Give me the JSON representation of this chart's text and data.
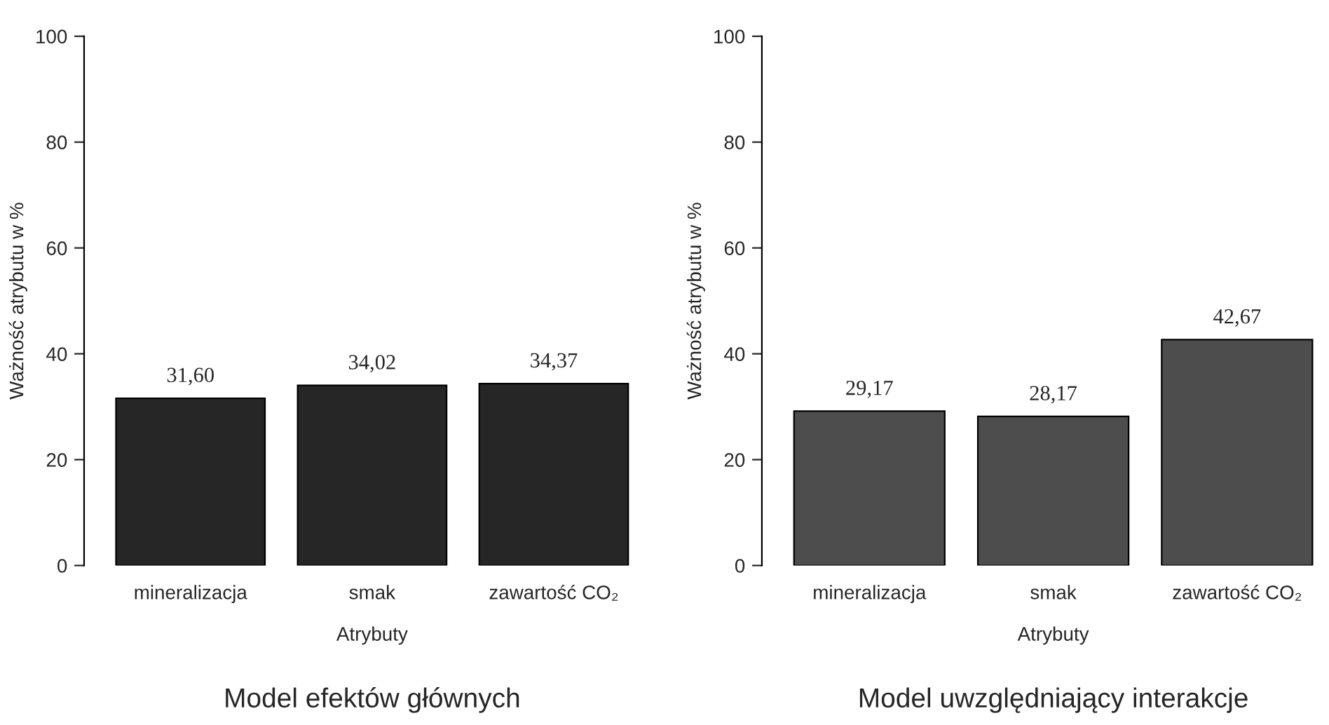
{
  "chart_data": [
    {
      "type": "bar",
      "title": "Model efektów głównych",
      "xlabel": "Atrybuty",
      "ylabel": "Ważność atrybutu w %",
      "categories": [
        "mineralizacja",
        "smak",
        "zawartość CO₂"
      ],
      "values": [
        31.6,
        34.02,
        34.37
      ],
      "value_labels": [
        "31,60",
        "34,02",
        "34,37"
      ],
      "color": "#262626",
      "ylim": [
        0,
        100
      ],
      "yticks": [
        0,
        20,
        40,
        60,
        80,
        100
      ],
      "grid": false,
      "legend": false
    },
    {
      "type": "bar",
      "title": "Model uwzględniający interakcje",
      "xlabel": "Atrybuty",
      "ylabel": "Ważność atrybutu w %",
      "categories": [
        "mineralizacja",
        "smak",
        "zawartość CO₂"
      ],
      "values": [
        29.17,
        28.17,
        42.67
      ],
      "value_labels": [
        "29,17",
        "28,17",
        "42,67"
      ],
      "color": "#4d4d4d",
      "ylim": [
        0,
        100
      ],
      "yticks": [
        0,
        20,
        40,
        60,
        80,
        100
      ],
      "grid": false,
      "legend": false
    }
  ]
}
